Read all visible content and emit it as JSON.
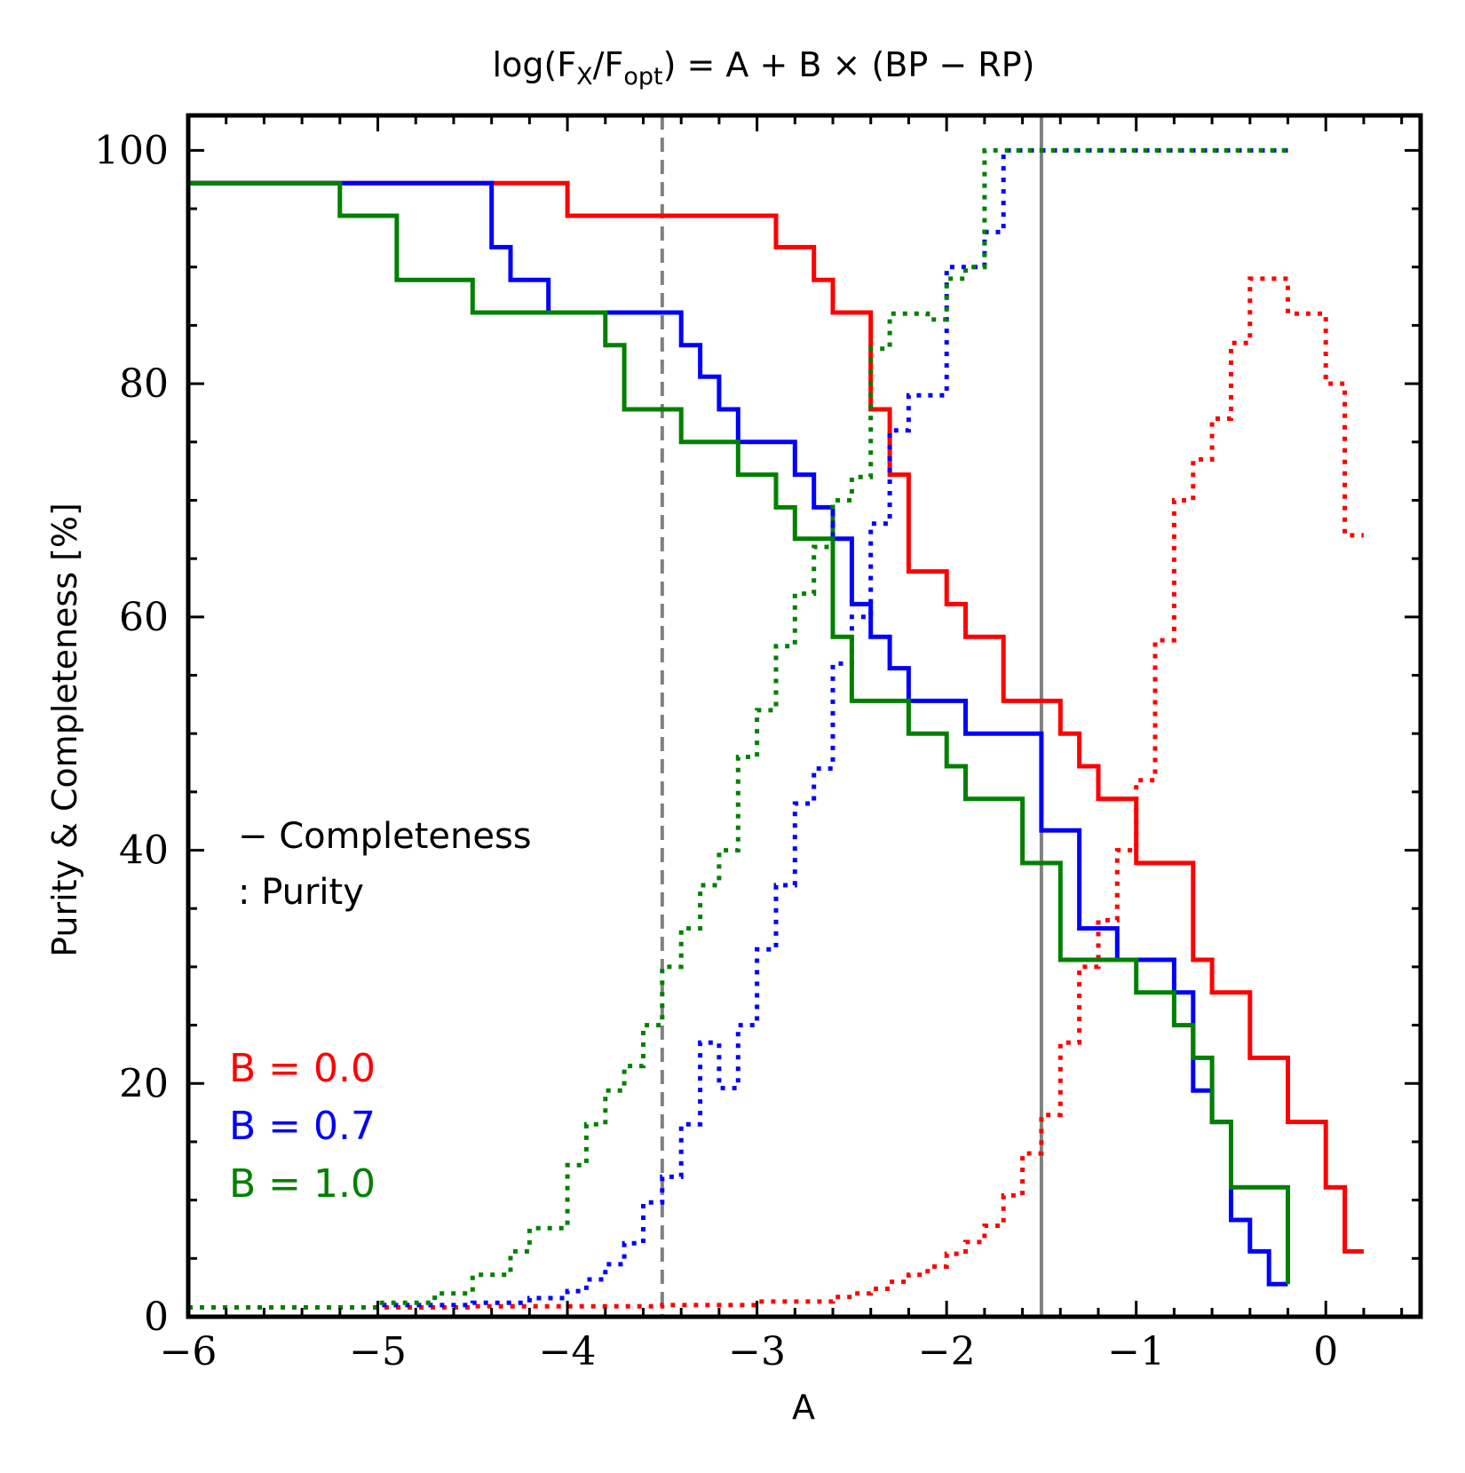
{
  "chart_data": {
    "type": "line",
    "title": "log(F_X/F_opt) = A + B × (BP − RP)",
    "title_parts": {
      "prefix": "log(F",
      "sub1": "X",
      "mid": "/F",
      "sub2": "opt",
      "suffix": ") = A + B × (BP − RP)"
    },
    "xlabel": "A",
    "ylabel": "Purity & Completeness [%]",
    "xlim": [
      -6,
      0.5
    ],
    "ylim": [
      0,
      103
    ],
    "xticks": [
      -6,
      -5,
      -4,
      -3,
      -2,
      -1,
      0
    ],
    "xtick_labels": [
      "−6",
      "−5",
      "−4",
      "−3",
      "−2",
      "−1",
      "0"
    ],
    "yticks": [
      0,
      20,
      40,
      60,
      80,
      100
    ],
    "ytick_labels": [
      "0",
      "20",
      "40",
      "60",
      "80",
      "100"
    ],
    "style_legend": {
      "solid": "− Completeness",
      "dotted": ": Purity"
    },
    "vlines": [
      {
        "x": -3.5,
        "style": "dashed",
        "color": "#808080"
      },
      {
        "x": -1.5,
        "style": "solid",
        "color": "#808080"
      }
    ],
    "series": [
      {
        "name": "B = 0.0",
        "label": "B = 0.0",
        "color": "#ff0000",
        "completeness": {
          "x": [
            -6.0,
            -4.4,
            -4.0,
            -2.9,
            -2.7,
            -2.6,
            -2.4,
            -2.3,
            -2.2,
            -2.0,
            -1.9,
            -1.7,
            -1.5,
            -1.4,
            -1.3,
            -1.2,
            -1.0,
            -0.7,
            -0.6,
            -0.4,
            -0.2,
            0.0,
            0.1,
            0.2
          ],
          "y": [
            97.2,
            97.2,
            94.4,
            91.7,
            88.9,
            86.1,
            77.8,
            72.2,
            63.9,
            61.1,
            58.3,
            52.8,
            52.8,
            50.0,
            47.2,
            44.4,
            38.9,
            30.6,
            27.8,
            22.2,
            16.7,
            11.1,
            5.6,
            5.6
          ]
        },
        "purity": {
          "x": [
            -6.0,
            -5.0,
            -4.5,
            -4.0,
            -3.5,
            -3.0,
            -2.6,
            -2.5,
            -2.4,
            -2.3,
            -2.2,
            -2.1,
            -2.0,
            -1.9,
            -1.8,
            -1.7,
            -1.6,
            -1.5,
            -1.4,
            -1.3,
            -1.2,
            -1.1,
            -1.0,
            -0.9,
            -0.8,
            -0.7,
            -0.6,
            -0.5,
            -0.4,
            -0.3,
            -0.2,
            -0.1,
            0.0,
            0.1,
            0.2
          ],
          "y": [
            0.8,
            0.8,
            0.9,
            0.9,
            1.0,
            1.3,
            1.7,
            2.0,
            2.4,
            3.0,
            3.6,
            4.3,
            5.4,
            6.4,
            7.8,
            10.4,
            14.0,
            17.3,
            23.5,
            30.0,
            34.0,
            40.0,
            46.0,
            58.0,
            70.0,
            73.5,
            77.0,
            83.5,
            89.0,
            89.0,
            86.0,
            86.0,
            80.0,
            67.0,
            67.0
          ]
        }
      },
      {
        "name": "B = 0.7",
        "label": "B = 0.7",
        "color": "#0000ff",
        "completeness": {
          "x": [
            -6.0,
            -4.4,
            -4.3,
            -4.1,
            -3.4,
            -3.3,
            -3.2,
            -3.1,
            -2.8,
            -2.7,
            -2.6,
            -2.5,
            -2.4,
            -2.3,
            -2.2,
            -1.9,
            -1.5,
            -1.3,
            -1.1,
            -0.8,
            -0.7,
            -0.6,
            -0.5,
            -0.4,
            -0.3,
            -0.2
          ],
          "y": [
            97.2,
            91.7,
            88.9,
            86.1,
            83.3,
            80.6,
            77.8,
            75.0,
            72.2,
            69.4,
            66.7,
            61.1,
            58.3,
            55.6,
            52.8,
            50.0,
            41.7,
            33.3,
            30.6,
            27.8,
            19.4,
            16.7,
            8.3,
            5.6,
            2.8,
            2.8
          ]
        },
        "purity": {
          "x": [
            -6.0,
            -5.0,
            -4.5,
            -4.2,
            -4.0,
            -3.9,
            -3.8,
            -3.7,
            -3.6,
            -3.5,
            -3.4,
            -3.3,
            -3.2,
            -3.1,
            -3.0,
            -2.9,
            -2.8,
            -2.7,
            -2.6,
            -2.5,
            -2.4,
            -2.3,
            -2.2,
            -2.1,
            -2.0,
            -1.9,
            -1.8,
            -1.7,
            -1.6,
            -1.5,
            -1.4,
            -1.3,
            -1.2,
            -1.1,
            -1.0,
            -0.9,
            -0.8,
            -0.7,
            -0.6,
            -0.5,
            -0.4,
            -0.3,
            -0.2
          ],
          "y": [
            0.8,
            1.0,
            1.2,
            1.6,
            2.2,
            3.2,
            4.5,
            6.3,
            9.8,
            12.0,
            16.5,
            23.5,
            19.6,
            25.0,
            31.5,
            37.0,
            44.0,
            47.0,
            56.0,
            60.0,
            68.0,
            76.0,
            79.0,
            79.0,
            90.0,
            90.0,
            93.0,
            100.0,
            100.0,
            100.0,
            100.0,
            100.0,
            100.0,
            100.0,
            100.0,
            100.0,
            100.0,
            100.0,
            100.0,
            100.0,
            100.0,
            100.0,
            100.0
          ]
        }
      },
      {
        "name": "B = 1.0",
        "label": "B = 1.0",
        "color": "#008000",
        "completeness": {
          "x": [
            -6.0,
            -5.2,
            -4.9,
            -4.5,
            -3.8,
            -3.7,
            -3.4,
            -3.1,
            -2.9,
            -2.8,
            -2.6,
            -2.5,
            -2.2,
            -2.0,
            -1.9,
            -1.6,
            -1.4,
            -1.1,
            -1.0,
            -0.8,
            -0.7,
            -0.6,
            -0.5,
            -0.2
          ],
          "y": [
            97.2,
            94.4,
            88.9,
            86.1,
            83.3,
            77.8,
            75.0,
            72.2,
            69.4,
            66.7,
            58.3,
            52.8,
            50.0,
            47.2,
            44.4,
            38.9,
            30.6,
            30.6,
            27.8,
            25.0,
            22.2,
            16.7,
            11.1,
            2.8
          ]
        },
        "purity": {
          "x": [
            -6.0,
            -5.0,
            -4.7,
            -4.5,
            -4.3,
            -4.2,
            -4.0,
            -3.9,
            -3.8,
            -3.7,
            -3.6,
            -3.5,
            -3.4,
            -3.3,
            -3.2,
            -3.1,
            -3.0,
            -2.9,
            -2.8,
            -2.7,
            -2.6,
            -2.5,
            -2.4,
            -2.3,
            -2.2,
            -2.1,
            -2.0,
            -1.9,
            -1.8,
            -1.7,
            -1.6,
            -1.5,
            -1.0,
            -0.5,
            -0.2
          ],
          "y": [
            0.8,
            1.2,
            2.0,
            3.6,
            5.6,
            7.6,
            13.0,
            16.5,
            19.4,
            21.5,
            25.0,
            30.0,
            33.3,
            37.0,
            40.0,
            48.0,
            52.0,
            57.5,
            62.0,
            66.0,
            70.0,
            72.0,
            83.0,
            86.0,
            86.0,
            85.5,
            89.0,
            90.0,
            100.0,
            100.0,
            100.0,
            100.0,
            100.0,
            100.0,
            100.0
          ]
        }
      }
    ]
  }
}
